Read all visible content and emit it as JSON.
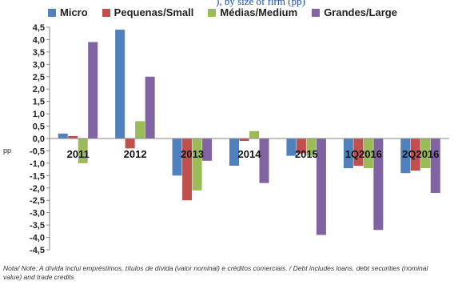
{
  "header_fragment": "), by size of firm (pp)",
  "note": "Nota/ Note: A dívida inclui empréstimos, títulos de dívida (valor nominal) e créditos comerciais. / Debt includes loans, debt securities (nominal value) and trade credits",
  "colors": {
    "micro": "#4f81bd",
    "small": "#c0504d",
    "medium": "#9bbb59",
    "large": "#8064a2"
  },
  "chart_data": {
    "type": "bar",
    "ylabel": "pp",
    "ylim": [
      -4.5,
      4.5
    ],
    "yticks": [
      "4,5",
      "4,0",
      "3,5",
      "3,0",
      "2,5",
      "2,0",
      "1,5",
      "1,0",
      "0,5",
      "0,0",
      "-0,5",
      "-1,0",
      "-1,5",
      "-2,0",
      "-2,5",
      "-3,0",
      "-3,5",
      "-4,0",
      "-4,5"
    ],
    "categories": [
      "2011",
      "2012",
      "2013",
      "2014",
      "2015",
      "1Q2016",
      "2Q2016"
    ],
    "legend_position": "top",
    "grid": false,
    "series": [
      {
        "name": "Micro",
        "color": "#4f81bd",
        "values": [
          0.2,
          4.4,
          -1.5,
          -1.1,
          -0.7,
          -1.2,
          -1.4
        ]
      },
      {
        "name": "Pequenas/Small",
        "color": "#c0504d",
        "values": [
          0.1,
          -0.4,
          -2.5,
          -0.1,
          -0.6,
          -1.1,
          -1.3
        ]
      },
      {
        "name": "Médias/Medium",
        "color": "#9bbb59",
        "values": [
          -1.0,
          0.7,
          -2.1,
          0.3,
          -0.7,
          -1.2,
          -1.2
        ]
      },
      {
        "name": "Grandes/Large",
        "color": "#8064a2",
        "values": [
          3.9,
          2.5,
          -0.9,
          -1.8,
          -3.9,
          -3.7,
          -2.2
        ]
      }
    ]
  }
}
